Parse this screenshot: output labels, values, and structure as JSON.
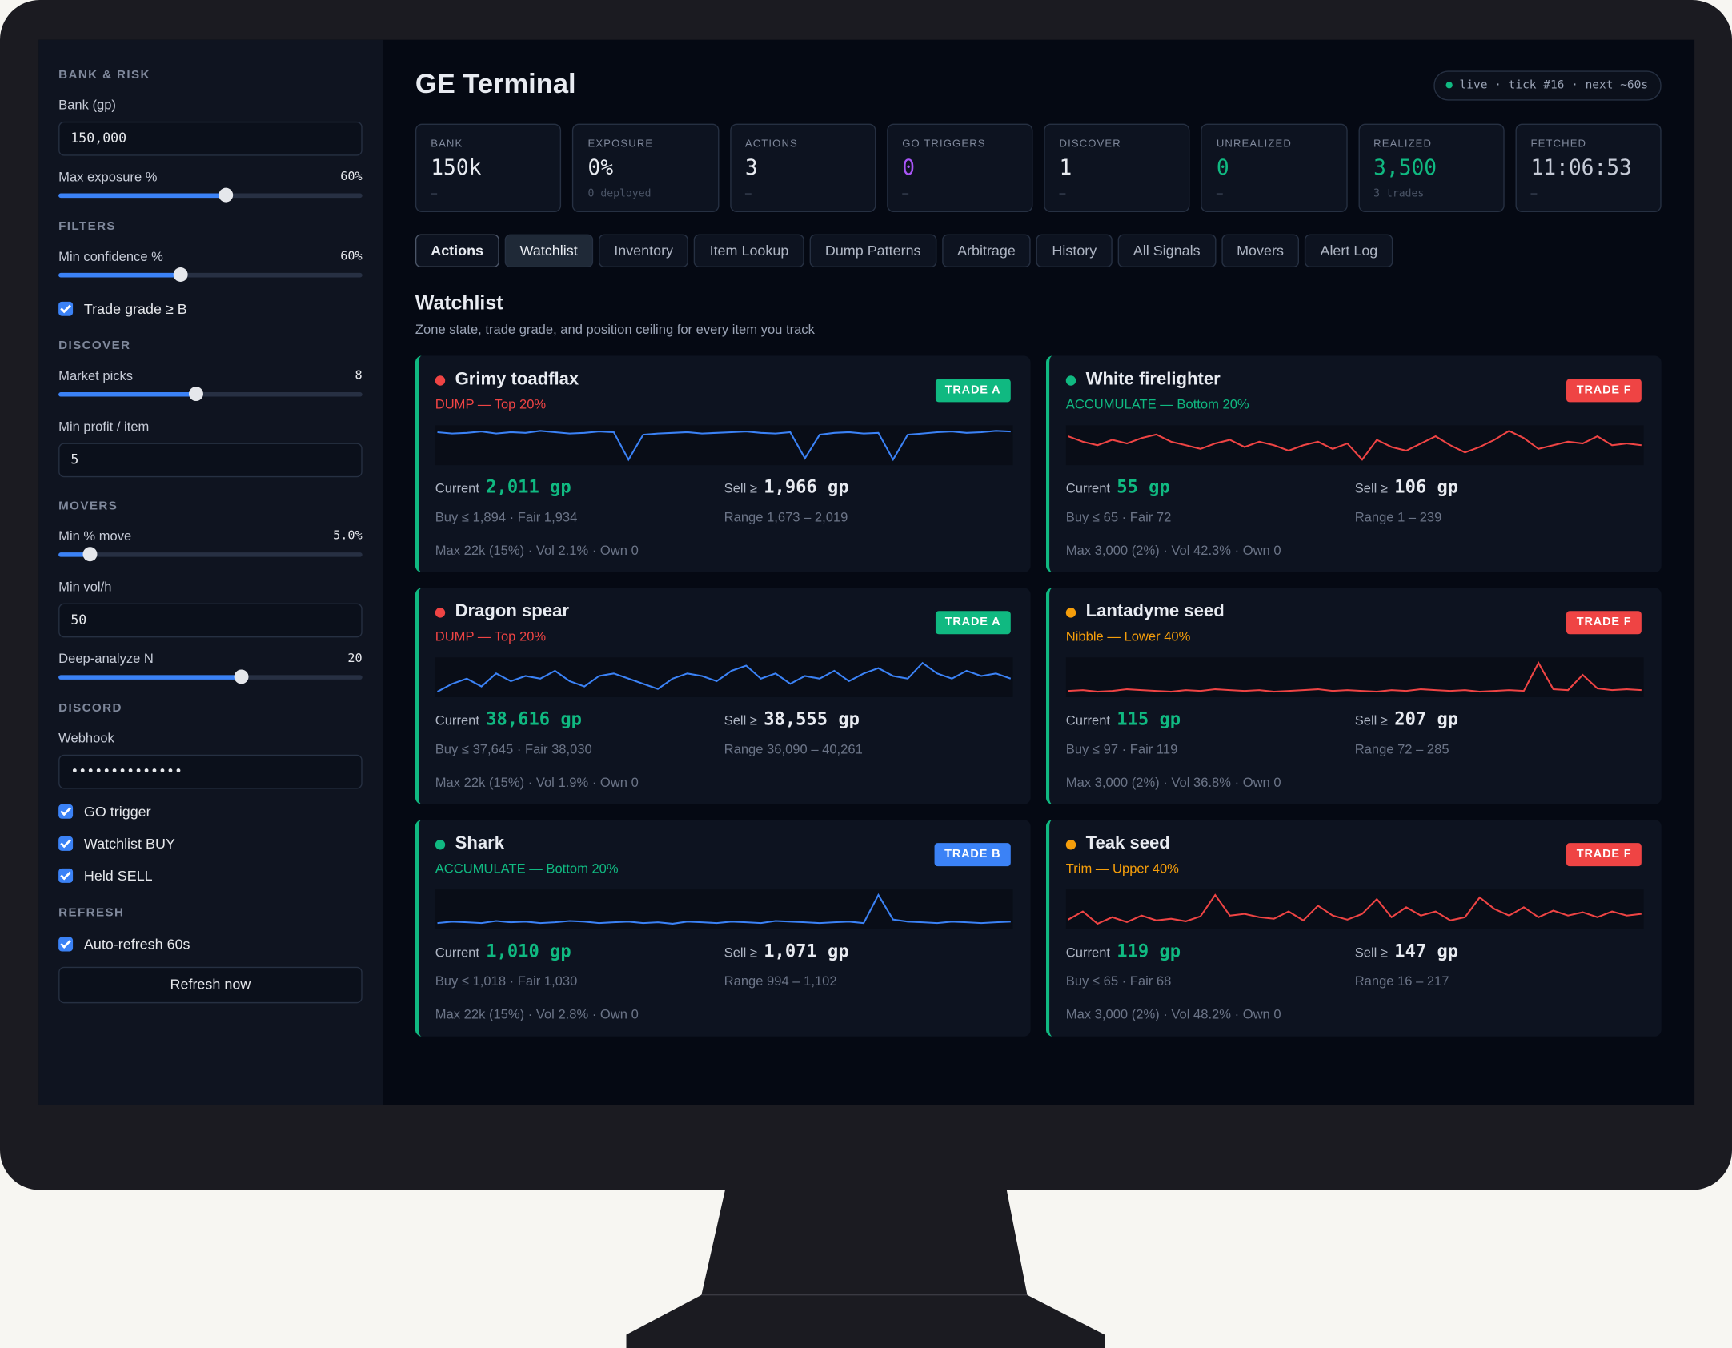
{
  "header": {
    "title": "GE Terminal",
    "status": "live · tick #16 · next ~60s"
  },
  "sidebar": {
    "sections": [
      {
        "heading": "BANK & RISK",
        "controls": [
          {
            "kind": "input",
            "label": "Bank (gp)",
            "value": "150,000"
          },
          {
            "kind": "slider",
            "label": "Max exposure %",
            "value": "60%"
          }
        ]
      },
      {
        "heading": "FILTERS",
        "controls": [
          {
            "kind": "slider",
            "label": "Min confidence %",
            "value": "60%"
          },
          {
            "kind": "check",
            "label": "Trade grade ≥ B"
          }
        ]
      },
      {
        "heading": "DISCOVER",
        "controls": [
          {
            "kind": "slider",
            "label": "Market picks",
            "value": "8"
          },
          {
            "kind": "input",
            "label": "Min profit / item",
            "value": "5"
          }
        ]
      },
      {
        "heading": "MOVERS",
        "controls": [
          {
            "kind": "slider",
            "label": "Min % move",
            "value": "5.0%"
          },
          {
            "kind": "input",
            "label": "Min vol/h",
            "value": "50"
          },
          {
            "kind": "slider",
            "label": "Deep-analyze N",
            "value": "20"
          }
        ]
      },
      {
        "heading": "DISCORD",
        "controls": [
          {
            "kind": "input",
            "label": "Webhook",
            "value": "••••••••••••••"
          },
          {
            "kind": "check",
            "label": "GO trigger"
          },
          {
            "kind": "check",
            "label": "Watchlist BUY"
          },
          {
            "kind": "check",
            "label": "Held SELL"
          }
        ]
      },
      {
        "heading": "REFRESH",
        "controls": [
          {
            "kind": "check",
            "label": "Auto-refresh 60s"
          },
          {
            "kind": "button",
            "label": "Refresh now"
          }
        ]
      }
    ]
  },
  "stats": [
    {
      "label": "BANK",
      "value": "150k",
      "sub": "—"
    },
    {
      "label": "EXPOSURE",
      "value": "0%",
      "sub": "0 deployed"
    },
    {
      "label": "ACTIONS",
      "value": "3",
      "sub": "—"
    },
    {
      "label": "GO TRIGGERS",
      "value": "0",
      "sub": "—",
      "color": "#a855f7"
    },
    {
      "label": "DISCOVER",
      "value": "1",
      "sub": "—"
    },
    {
      "label": "UNREALIZED",
      "value": "0",
      "sub": "—",
      "color": "#10b981"
    },
    {
      "label": "REALIZED",
      "value": "3,500",
      "sub": "3 trades",
      "color": "#10b981"
    },
    {
      "label": "FETCHED",
      "value": "11:06:53",
      "sub": "—",
      "color": "#c5cad6"
    }
  ],
  "tabs": {
    "items": [
      "Actions",
      "Watchlist",
      "Inventory",
      "Item Lookup",
      "Dump Patterns",
      "Arbitrage",
      "History",
      "All Signals",
      "Movers",
      "Alert Log"
    ],
    "selected": 1
  },
  "watchlist": {
    "title": "Watchlist",
    "subtitle": "Zone state, trade grade, and position ceiling for every item you track",
    "labels": {
      "current": "Current",
      "sell": "Sell ≥"
    },
    "cards": [
      {
        "name": "Grimy toadflax",
        "dot_color": "#ef4444",
        "signal": "DUMP — Top 20%",
        "signal_color": "#ef4444",
        "grade": "TRADE A",
        "grade_color": "#10b981",
        "current": "2,011 gp",
        "sell": "1,966 gp",
        "buy_fair": "Buy ≤ 1,894 · Fair 1,934",
        "range": "Range 1,673 – 2,019",
        "footer": "Max 22k (15%) · Vol 2.1% · Own 0",
        "spark_color": "#3b82f6",
        "spark": [
          62,
          60,
          61,
          63,
          60,
          62,
          61,
          64,
          62,
          60,
          61,
          63,
          62,
          20,
          58,
          60,
          61,
          62,
          60,
          61,
          62,
          63,
          61,
          60,
          62,
          22,
          58,
          61,
          62,
          60,
          61,
          20,
          58,
          60,
          62,
          63,
          61,
          62,
          64,
          63
        ]
      },
      {
        "name": "White firelighter",
        "dot_color": "#10b981",
        "signal": "ACCUMULATE — Bottom 20%",
        "signal_color": "#10b981",
        "grade": "TRADE F",
        "grade_color": "#ef4444",
        "current": "55 gp",
        "sell": "106 gp",
        "buy_fair": "Buy ≤ 65 · Fair 72",
        "range": "Range 1 – 239",
        "footer": "Max 3,000 (2%) · Vol 42.3% · Own 0",
        "spark_color": "#ef4444",
        "spark": [
          55,
          52,
          50,
          53,
          51,
          54,
          56,
          52,
          50,
          48,
          51,
          53,
          49,
          52,
          50,
          47,
          50,
          52,
          48,
          51,
          42,
          53,
          49,
          47,
          51,
          55,
          50,
          46,
          49,
          53,
          58,
          54,
          48,
          50,
          52,
          51,
          55,
          50,
          51,
          50
        ]
      },
      {
        "name": "Dragon spear",
        "dot_color": "#ef4444",
        "signal": "DUMP — Top 20%",
        "signal_color": "#ef4444",
        "grade": "TRADE A",
        "grade_color": "#10b981",
        "current": "38,616 gp",
        "sell": "38,555 gp",
        "buy_fair": "Buy ≤ 37,645 · Fair 38,030",
        "range": "Range 36,090 – 40,261",
        "footer": "Max 22k (15%) · Vol 1.9% · Own 0",
        "spark_color": "#3b82f6",
        "spark": [
          45,
          48,
          50,
          47,
          52,
          49,
          51,
          50,
          53,
          49,
          47,
          51,
          52,
          50,
          48,
          46,
          50,
          52,
          51,
          49,
          53,
          55,
          50,
          52,
          48,
          51,
          50,
          53,
          49,
          52,
          54,
          51,
          50,
          56,
          52,
          50,
          53,
          51,
          52,
          50
        ]
      },
      {
        "name": "Lantadyme seed",
        "dot_color": "#f59e0b",
        "signal": "Nibble — Lower 40%",
        "signal_color": "#f59e0b",
        "grade": "TRADE F",
        "grade_color": "#ef4444",
        "current": "115 gp",
        "sell": "207 gp",
        "buy_fair": "Buy ≤ 97 · Fair 119",
        "range": "Range 72 – 285",
        "footer": "Max 3,000 (2%) · Vol 36.8% · Own 0",
        "spark_color": "#ef4444",
        "spark": [
          40,
          41,
          39,
          40,
          42,
          41,
          40,
          39,
          41,
          40,
          42,
          41,
          40,
          41,
          39,
          40,
          41,
          42,
          40,
          41,
          40,
          39,
          41,
          40,
          42,
          41,
          40,
          41,
          39,
          40,
          41,
          40,
          75,
          42,
          41,
          60,
          43,
          41,
          42,
          41
        ]
      },
      {
        "name": "Shark",
        "dot_color": "#10b981",
        "signal": "ACCUMULATE — Bottom 20%",
        "signal_color": "#10b981",
        "grade": "TRADE B",
        "grade_color": "#3b82f6",
        "current": "1,010 gp",
        "sell": "1,071 gp",
        "buy_fair": "Buy ≤ 1,018 · Fair 1,030",
        "range": "Range 994 – 1,102",
        "footer": "Max 22k (15%) · Vol 2.8% · Own 0",
        "spark_color": "#3b82f6",
        "spark": [
          40,
          42,
          41,
          40,
          43,
          41,
          42,
          40,
          41,
          43,
          42,
          40,
          41,
          42,
          40,
          41,
          39,
          42,
          41,
          40,
          42,
          41,
          40,
          43,
          42,
          41,
          40,
          41,
          42,
          40,
          80,
          45,
          42,
          41,
          40,
          42,
          41,
          40,
          41,
          42
        ]
      },
      {
        "name": "Teak seed",
        "dot_color": "#f59e0b",
        "signal": "Trim — Upper 40%",
        "signal_color": "#f59e0b",
        "grade": "TRADE F",
        "grade_color": "#ef4444",
        "current": "119 gp",
        "sell": "147 gp",
        "buy_fair": "Buy ≤ 65 · Fair 68",
        "range": "Range 16 – 217",
        "footer": "Max 3,000 (2%) · Vol 48.2% · Own 0",
        "spark_color": "#ef4444",
        "spark": [
          45,
          55,
          40,
          48,
          42,
          50,
          44,
          46,
          43,
          49,
          75,
          50,
          52,
          48,
          46,
          55,
          44,
          62,
          50,
          45,
          52,
          70,
          48,
          60,
          50,
          55,
          44,
          48,
          72,
          58,
          50,
          60,
          48,
          56,
          50,
          54,
          48,
          55,
          50,
          52
        ]
      }
    ]
  }
}
